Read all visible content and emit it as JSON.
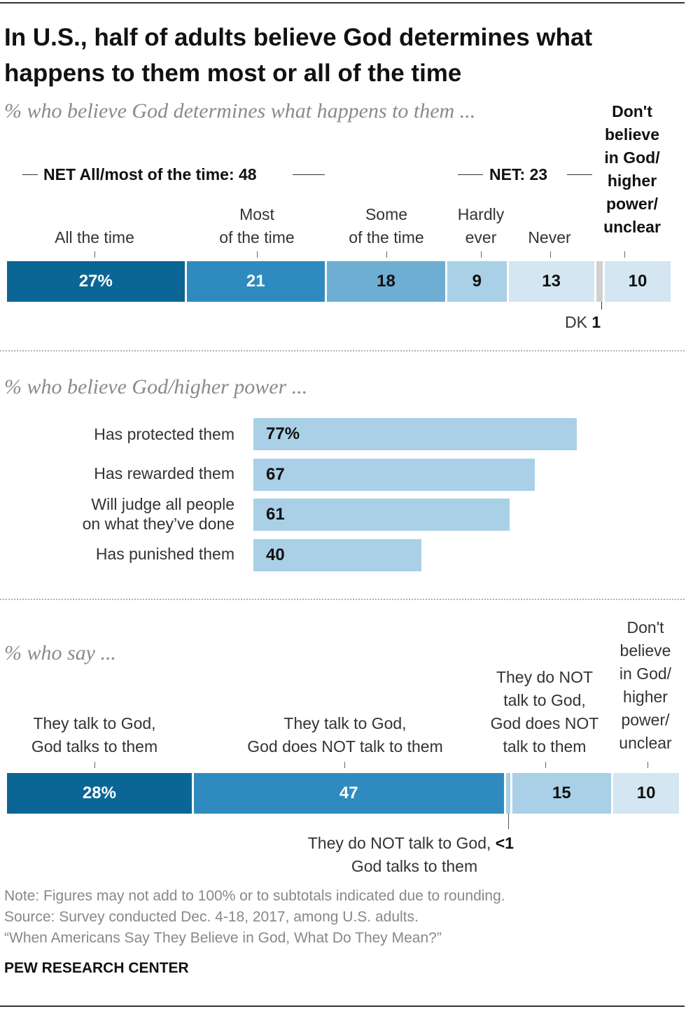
{
  "title_line1": "In U.S., half of adults believe God determines what",
  "title_line2": "happens to them most or all of the time",
  "chart_data": [
    {
      "type": "bar",
      "orientation": "stacked-horizontal",
      "subtitle": "% who believe God determines what happens to them ...",
      "categories": [
        "All the time",
        "Most of the time",
        "Some of the time",
        "Hardly ever",
        "Never",
        "DK",
        "Don't believe in God/ higher power/ unclear"
      ],
      "values": [
        27,
        21,
        18,
        9,
        13,
        1,
        10
      ],
      "value_labels": [
        "27%",
        "21",
        "18",
        "9",
        "13",
        "1",
        "10"
      ],
      "label_lines": {
        "all": "All the time",
        "most_1": "Most",
        "most_2": "of the time",
        "some_1": "Some",
        "some_2": "of the time",
        "hardly_1": "Hardly",
        "hardly_2": "ever",
        "never": "Never",
        "dk": "DK",
        "dont_1": "Don't",
        "dont_2": "believe",
        "dont_3": "in God/",
        "dont_4": "higher",
        "dont_5": "power/",
        "dont_6": "unclear"
      },
      "nets": [
        {
          "label": "NET All/most of the time: 48",
          "value": 48
        },
        {
          "label": "NET: 23",
          "value": 23
        }
      ]
    },
    {
      "type": "bar",
      "orientation": "horizontal",
      "subtitle": "% who believe God/higher power ...",
      "categories": [
        "Has protected them",
        "Has rewarded them",
        "Will judge all people on what they've done",
        "Has punished them"
      ],
      "label_lines": [
        [
          "Has protected them"
        ],
        [
          "Has rewarded them"
        ],
        [
          "Will judge all people",
          "on what they’ve done"
        ],
        [
          "Has punished them"
        ]
      ],
      "values": [
        77,
        67,
        61,
        40
      ],
      "value_labels": [
        "77%",
        "67",
        "61",
        "40"
      ],
      "xlim": [
        0,
        100
      ]
    },
    {
      "type": "bar",
      "orientation": "stacked-horizontal",
      "subtitle": "% who say ...",
      "categories": [
        "They talk to God, God talks to them",
        "They talk to God, God does NOT talk to them",
        "They do NOT talk to God, God talks to them",
        "They do NOT talk to God, God does NOT talk to them",
        "Don't believe in God/ higher power/ unclear"
      ],
      "values": [
        28,
        47,
        0.4,
        15,
        10
      ],
      "value_labels": [
        "28%",
        "47",
        "<1",
        "15",
        "10"
      ],
      "label_lines": {
        "c1_1": "They talk to God,",
        "c1_2": "God talks to them",
        "c2_1": "They talk to God,",
        "c2_2": "God does NOT talk to them",
        "c3_1": "They do NOT",
        "c3_2": "talk to God,",
        "c3_3": "God does NOT",
        "c3_4": "talk to them",
        "c4_1": "Don't",
        "c4_2": "believe",
        "c4_3": "in God/",
        "c4_4": "higher",
        "c4_5": "power/",
        "c4_6": "unclear",
        "small_1": "They do NOT talk to God,",
        "small_2": "God talks to them"
      }
    }
  ],
  "note": "Note: Figures may not add to 100% or to subtotals indicated due to rounding.",
  "source": "Source: Survey conducted Dec. 4-18, 2017, among U.S. adults.",
  "report": "“When Americans Say They Believe in God, What Do They Mean?”",
  "brand": "PEW RESEARCH CENTER",
  "colors": {
    "dark": "#0b6595",
    "medium": "#2f8bbf",
    "light_medium": "#6eaed3",
    "light": "#a9d0e6",
    "lightest": "#d3e6f1",
    "gray": "#d0d0d0"
  }
}
